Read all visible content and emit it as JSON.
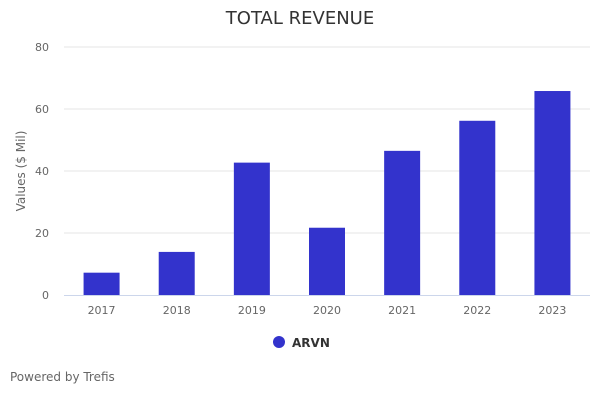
{
  "chart_data": {
    "type": "bar",
    "title": "TOTAL REVENUE",
    "xlabel": "",
    "ylabel": "Values ($ Mil)",
    "categories": [
      "2017",
      "2018",
      "2019",
      "2020",
      "2021",
      "2022",
      "2023"
    ],
    "series": [
      {
        "name": "ARVN",
        "color": "#3333cc",
        "values": [
          7.2,
          13.9,
          42.7,
          21.7,
          46.5,
          56.2,
          65.8
        ]
      }
    ],
    "ylim": [
      0,
      80
    ],
    "yticks": [
      "0",
      "20",
      "40",
      "60",
      "80"
    ],
    "grid": true,
    "legend": "bottom-center"
  },
  "footer": {
    "credit": "Powered by Trefis"
  }
}
